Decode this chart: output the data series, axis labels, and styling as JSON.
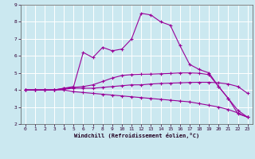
{
  "xlabel": "Windchill (Refroidissement éolien,°C)",
  "bg_color": "#cbe8f0",
  "grid_color": "#ffffff",
  "line_color": "#990099",
  "xlim": [
    -0.5,
    23.5
  ],
  "ylim": [
    2,
    9
  ],
  "xticks": [
    0,
    1,
    2,
    3,
    4,
    5,
    6,
    7,
    8,
    9,
    10,
    11,
    12,
    13,
    14,
    15,
    16,
    17,
    18,
    19,
    20,
    21,
    22,
    23
  ],
  "yticks": [
    2,
    3,
    4,
    5,
    6,
    7,
    8,
    9
  ],
  "line_down_x": [
    0,
    1,
    2,
    3,
    4,
    5,
    6,
    7,
    8,
    9,
    10,
    11,
    12,
    13,
    14,
    15,
    16,
    17,
    18,
    19,
    20,
    21,
    22,
    23
  ],
  "line_down_y": [
    4.0,
    4.0,
    4.0,
    4.0,
    4.0,
    3.9,
    3.85,
    3.8,
    3.75,
    3.7,
    3.65,
    3.6,
    3.55,
    3.5,
    3.45,
    3.4,
    3.35,
    3.3,
    3.2,
    3.1,
    3.0,
    2.85,
    2.65,
    2.4
  ],
  "line_flat_x": [
    0,
    1,
    2,
    3,
    4,
    5,
    6,
    7,
    8,
    9,
    10,
    11,
    12,
    13,
    14,
    15,
    16,
    17,
    18,
    19,
    20,
    21,
    22,
    23
  ],
  "line_flat_y": [
    4.0,
    4.0,
    4.0,
    4.0,
    4.05,
    4.1,
    4.1,
    4.1,
    4.15,
    4.2,
    4.25,
    4.3,
    4.3,
    4.35,
    4.38,
    4.4,
    4.42,
    4.44,
    4.45,
    4.45,
    4.42,
    4.35,
    4.2,
    3.8
  ],
  "line_mid_x": [
    0,
    1,
    2,
    3,
    4,
    5,
    6,
    7,
    8,
    9,
    10,
    11,
    12,
    13,
    14,
    15,
    16,
    17,
    18,
    19,
    20,
    21,
    22,
    23
  ],
  "line_mid_y": [
    4.0,
    4.0,
    4.0,
    4.0,
    4.1,
    4.15,
    4.2,
    4.3,
    4.5,
    4.7,
    4.85,
    4.9,
    4.92,
    4.93,
    4.95,
    4.97,
    5.0,
    5.0,
    4.98,
    4.9,
    4.2,
    3.5,
    2.8,
    2.4
  ],
  "line_top_x": [
    0,
    1,
    2,
    3,
    4,
    5,
    6,
    7,
    8,
    9,
    10,
    11,
    12,
    13,
    14,
    15,
    16,
    17,
    18,
    19,
    20,
    21,
    22,
    23
  ],
  "line_top_y": [
    4.0,
    4.0,
    4.0,
    4.0,
    4.1,
    4.2,
    6.2,
    5.9,
    6.5,
    6.3,
    6.4,
    7.0,
    8.5,
    8.4,
    8.0,
    7.8,
    6.6,
    5.5,
    5.2,
    5.0,
    4.2,
    3.5,
    2.6,
    2.4
  ]
}
